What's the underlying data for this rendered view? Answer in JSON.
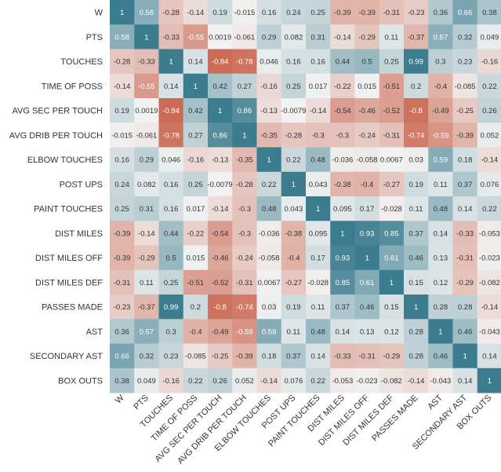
{
  "chart_data": {
    "type": "heatmap",
    "title": "",
    "labels": [
      "W",
      "PTS",
      "TOUCHES",
      "TIME OF POSS",
      "AVG SEC PER TOUCH",
      "AVG DRIB PER TOUCH",
      "ELBOW TOUCHES",
      "POST UPS",
      "PAINT TOUCHES",
      "DIST MILES",
      "DIST MILES OFF",
      "DIST MILES DEF",
      "PASSES MADE",
      "AST",
      "SECONDARY AST",
      "BOX OUTS"
    ],
    "value_range": [
      -1,
      1
    ],
    "colors": {
      "negative": "#c45238",
      "center": "#f2f2f2",
      "positive": "#3b7c8f",
      "text_dark": "#333333",
      "text_light": "#ffffff"
    },
    "annotated": true,
    "matrix": [
      [
        1,
        0.58,
        -0.28,
        -0.14,
        0.19,
        -0.015,
        0.16,
        0.24,
        0.25,
        -0.39,
        -0.39,
        -0.31,
        -0.23,
        0.36,
        0.66,
        0.38
      ],
      [
        0.58,
        1,
        -0.33,
        -0.55,
        0.0019,
        -0.061,
        0.29,
        0.082,
        0.31,
        -0.14,
        -0.29,
        0.11,
        -0.37,
        0.57,
        0.32,
        0.049
      ],
      [
        -0.28,
        -0.33,
        1,
        0.14,
        -0.84,
        -0.78,
        0.046,
        0.16,
        0.16,
        0.44,
        0.5,
        0.25,
        0.99,
        0.3,
        0.23,
        -0.16
      ],
      [
        -0.14,
        -0.55,
        0.14,
        1,
        0.42,
        0.27,
        -0.16,
        0.25,
        0.017,
        -0.22,
        0.015,
        -0.51,
        0.2,
        -0.4,
        -0.085,
        0.22
      ],
      [
        0.19,
        0.0019,
        -0.84,
        0.42,
        1,
        0.86,
        -0.13,
        -0.0079,
        -0.14,
        -0.54,
        -0.46,
        -0.52,
        -0.8,
        -0.49,
        -0.25,
        0.26
      ],
      [
        -0.015,
        -0.061,
        -0.78,
        0.27,
        0.86,
        1,
        -0.35,
        -0.28,
        -0.3,
        -0.3,
        -0.24,
        -0.31,
        -0.74,
        -0.59,
        -0.39,
        0.052
      ],
      [
        0.16,
        0.29,
        0.046,
        -0.16,
        -0.13,
        -0.35,
        1,
        0.22,
        0.48,
        -0.036,
        -0.058,
        0.0067,
        0.03,
        0.59,
        0.18,
        -0.14
      ],
      [
        0.24,
        0.082,
        0.16,
        0.25,
        -0.0079,
        -0.28,
        0.22,
        1,
        0.043,
        -0.38,
        -0.4,
        -0.27,
        0.19,
        0.11,
        0.37,
        0.076
      ],
      [
        0.25,
        0.31,
        0.16,
        0.017,
        -0.14,
        -0.3,
        0.48,
        0.043,
        1,
        0.095,
        0.17,
        -0.028,
        0.11,
        0.48,
        0.14,
        0.22
      ],
      [
        -0.39,
        -0.14,
        0.44,
        -0.22,
        -0.54,
        -0.3,
        -0.036,
        -0.38,
        0.095,
        1,
        0.93,
        0.85,
        0.37,
        0.14,
        -0.33,
        -0.053
      ],
      [
        -0.39,
        -0.29,
        0.5,
        0.015,
        -0.46,
        -0.24,
        -0.058,
        -0.4,
        0.17,
        0.93,
        1,
        0.61,
        0.46,
        0.13,
        -0.31,
        -0.023
      ],
      [
        -0.31,
        0.11,
        0.25,
        -0.51,
        -0.52,
        -0.31,
        0.0067,
        -0.27,
        -0.028,
        0.85,
        0.61,
        1,
        0.15,
        0.12,
        -0.29,
        -0.082
      ],
      [
        -0.23,
        -0.37,
        0.99,
        0.2,
        -0.8,
        -0.74,
        0.03,
        0.19,
        0.11,
        0.37,
        0.46,
        0.15,
        1,
        0.28,
        0.28,
        -0.14
      ],
      [
        0.36,
        0.57,
        0.3,
        -0.4,
        -0.49,
        -0.59,
        0.59,
        0.11,
        0.48,
        0.14,
        0.13,
        0.12,
        0.28,
        1,
        0.46,
        -0.043
      ],
      [
        0.66,
        0.32,
        0.23,
        -0.085,
        -0.25,
        -0.39,
        0.18,
        0.37,
        0.14,
        -0.33,
        -0.31,
        -0.29,
        0.28,
        0.46,
        1,
        0.14
      ],
      [
        0.38,
        0.049,
        -0.16,
        0.22,
        0.26,
        0.052,
        -0.14,
        0.076,
        0.22,
        -0.053,
        -0.023,
        -0.082,
        -0.14,
        -0.043,
        0.14,
        1
      ]
    ]
  }
}
